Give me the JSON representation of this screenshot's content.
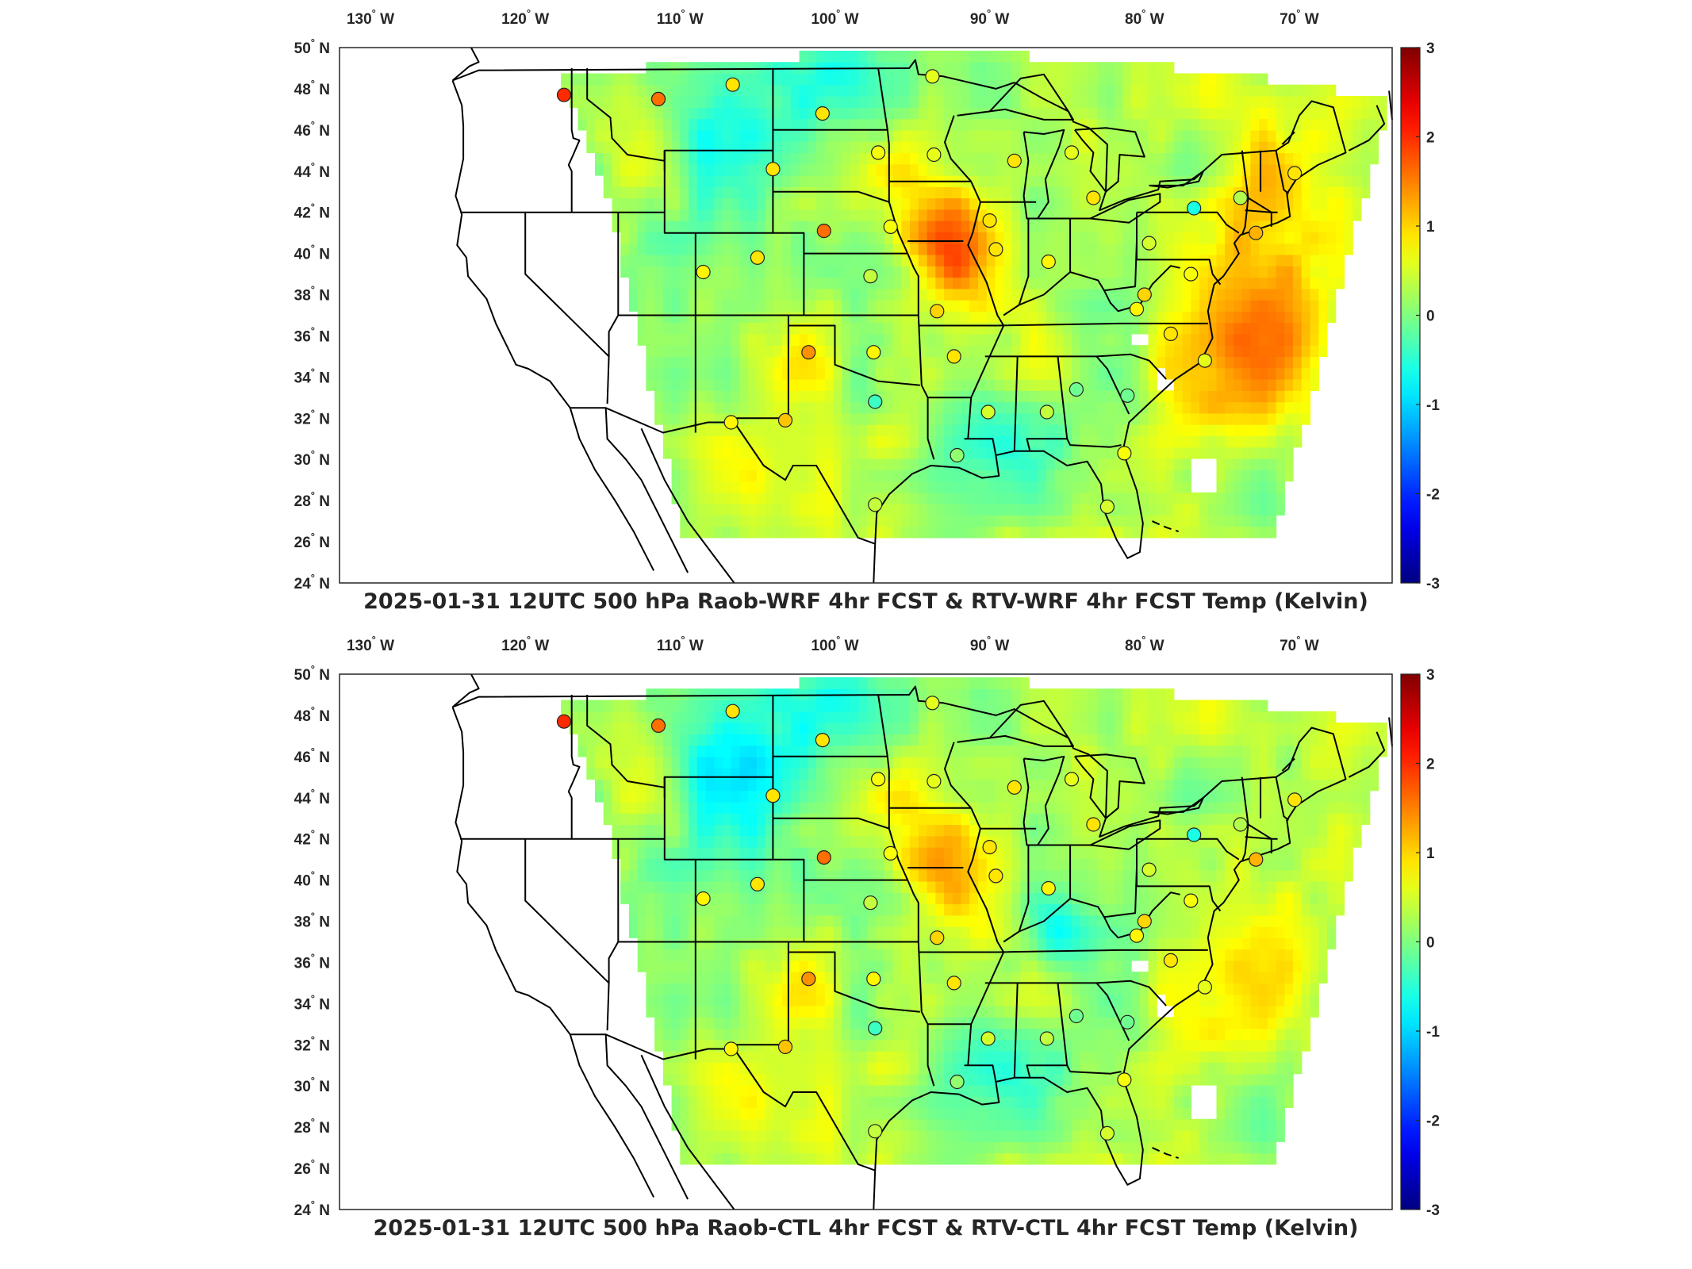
{
  "figure": {
    "top": {
      "title": "2025-01-31 12UTC 500 hPa Raob-WRF 4hr FCST & RTV-WRF 4hr FCST Temp (Kelvin)",
      "station_values": [
        2.0,
        1.6,
        0.9,
        0.9,
        0.7,
        0.6,
        0.6,
        0.9,
        0.8,
        0.9,
        1.6,
        0.7,
        0.4,
        0.9,
        0.9,
        0.6,
        0.9,
        0.9,
        0.8,
        0.5,
        -0.6,
        0.3,
        0.9,
        1.2,
        0.7,
        1.0,
        0.8,
        0.9,
        0.6,
        -0.1,
        -0.1,
        0.7,
        0.5,
        0.4,
        0.5,
        0.9,
        1.0,
        0.8,
        1.4,
        1.1,
        0.8,
        -0.4,
        0.4,
        0.1
      ],
      "field_bias": "warm"
    },
    "bottom": {
      "title": "2025-01-31 12UTC 500 hPa Raob-CTL 4hr FCST & RTV-CTL 4hr FCST Temp (Kelvin)",
      "station_values": [
        2.0,
        1.6,
        0.9,
        0.9,
        0.7,
        0.6,
        0.6,
        0.9,
        0.8,
        0.9,
        1.6,
        0.7,
        0.4,
        0.9,
        0.9,
        0.6,
        0.9,
        0.9,
        0.8,
        0.5,
        -0.6,
        0.3,
        0.9,
        1.2,
        0.7,
        1.0,
        0.8,
        0.9,
        0.6,
        -0.1,
        -0.1,
        0.7,
        0.5,
        0.4,
        0.5,
        0.9,
        1.0,
        0.8,
        1.4,
        1.1,
        0.8,
        -0.4,
        0.4,
        0.1
      ],
      "field_bias": "neutral"
    }
  },
  "axes": {
    "lon_ticks": [
      "130",
      "120",
      "110",
      "100",
      "90",
      "80",
      "70"
    ],
    "lon_suffix": "W",
    "lat_ticks": [
      "50",
      "48",
      "46",
      "44",
      "42",
      "40",
      "38",
      "36",
      "34",
      "32",
      "30",
      "28",
      "26",
      "24"
    ],
    "lat_suffix": "N",
    "degree_symbol": "°",
    "lon_range": [
      -132,
      -64
    ],
    "lat_range": [
      24,
      50
    ]
  },
  "colorbar": {
    "colormap": "jet",
    "limits": [
      -3,
      3
    ],
    "tick_labels": [
      "3",
      "2",
      "1",
      "0",
      "-1",
      "-2",
      "-3"
    ]
  },
  "stations": {
    "coords": [
      [
        -117.5,
        47.7
      ],
      [
        -111.4,
        47.5
      ],
      [
        -106.6,
        48.2
      ],
      [
        -100.8,
        46.8
      ],
      [
        -97.2,
        44.9
      ],
      [
        -93.6,
        44.8
      ],
      [
        -93.7,
        48.6
      ],
      [
        -104.0,
        44.1
      ],
      [
        -108.5,
        39.1
      ],
      [
        -105.0,
        39.8
      ],
      [
        -100.7,
        41.1
      ],
      [
        -96.4,
        41.3
      ],
      [
        -97.7,
        38.9
      ],
      [
        -90.0,
        41.6
      ],
      [
        -88.4,
        44.5
      ],
      [
        -84.7,
        44.9
      ],
      [
        -83.3,
        42.7
      ],
      [
        -89.6,
        40.2
      ],
      [
        -86.2,
        39.6
      ],
      [
        -79.7,
        40.5
      ],
      [
        -76.8,
        42.2
      ],
      [
        -73.8,
        42.7
      ],
      [
        -70.3,
        43.9
      ],
      [
        -72.8,
        41.0
      ],
      [
        -77.0,
        39.0
      ],
      [
        -80.0,
        38.0
      ],
      [
        -80.5,
        37.3
      ],
      [
        -78.3,
        36.1
      ],
      [
        -76.1,
        34.8
      ],
      [
        -81.1,
        33.1
      ],
      [
        -84.4,
        33.4
      ],
      [
        -81.3,
        30.3
      ],
      [
        -82.4,
        27.7
      ],
      [
        -86.3,
        32.3
      ],
      [
        -90.1,
        32.3
      ],
      [
        -92.3,
        35.0
      ],
      [
        -93.4,
        37.2
      ],
      [
        -97.5,
        35.2
      ],
      [
        -101.7,
        35.2
      ],
      [
        -103.2,
        31.9
      ],
      [
        -106.7,
        31.8
      ],
      [
        -97.4,
        32.8
      ],
      [
        -97.4,
        27.8
      ],
      [
        -92.1,
        30.2
      ]
    ]
  }
}
